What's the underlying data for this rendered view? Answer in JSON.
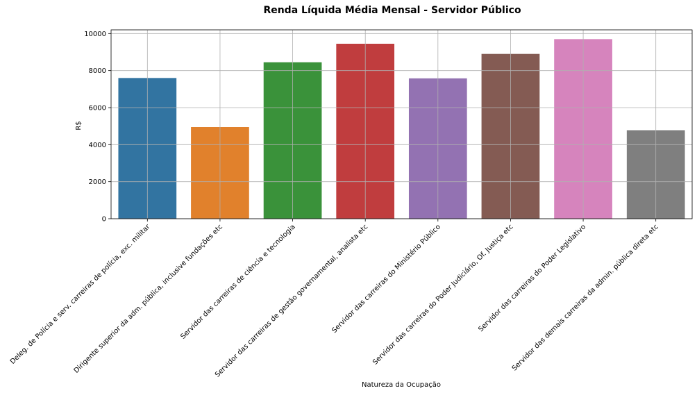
{
  "chart_data": {
    "type": "bar",
    "title": "Renda Líquida Média Mensal - Servidor Público",
    "xlabel": "Natureza da Ocupação",
    "ylabel": "R$",
    "ylim": [
      0,
      10200
    ],
    "yticks": [
      0,
      2000,
      4000,
      6000,
      8000,
      10000
    ],
    "grid": true,
    "categories": [
      "Deleg. de Polícia e serv. carreiras de polícia, exc. militar",
      "Dirigente superior da adm. pública, inclusive fundações etc",
      "Servidor das carreiras de ciência e tecnologia",
      "Servidor das carreiras de gestão governamental, analista etc",
      "Servidor das carreiras do Ministério Público",
      "Servidor das carreiras do Poder Judiciário, Of. Justiça etc",
      "Servidor das carreiras do Poder Legislativo",
      "Servidor das demais carreiras da admin. pública direta etc"
    ],
    "values": [
      7600,
      4950,
      8450,
      9450,
      7580,
      8900,
      9700,
      4780
    ],
    "colors": [
      "#3274a1",
      "#e1812c",
      "#3a923a",
      "#c03d3e",
      "#9372b2",
      "#845b53",
      "#d684bd",
      "#7f7f7f"
    ]
  }
}
